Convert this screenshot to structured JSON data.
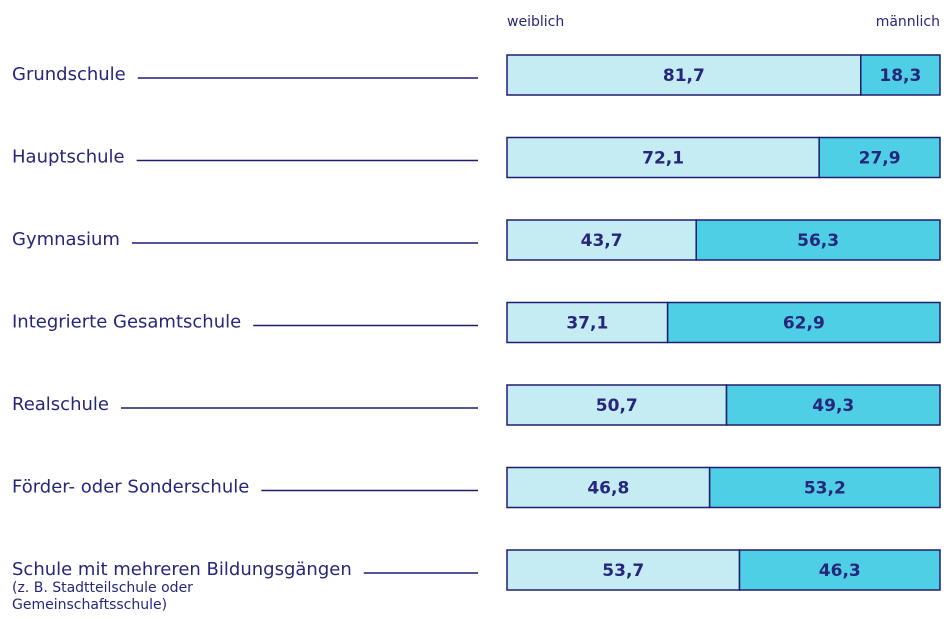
{
  "chart_data": {
    "type": "bar",
    "orientation": "horizontal",
    "stacked": true,
    "categories": [
      "Grundschule",
      "Hauptschule",
      "Gymnasium",
      "Integrierte Gesamtschule",
      "Realschule",
      "Förder- oder Sonderschule",
      "Schule mit mehreren Bildungsgängen"
    ],
    "category_notes": [
      null,
      null,
      null,
      null,
      null,
      null,
      [
        "(z. B. Stadtteilschule oder",
        "Gemeinschaftsschule)"
      ]
    ],
    "series": [
      {
        "name": "weiblich",
        "color": "#c4ecf2",
        "values": [
          81.7,
          72.1,
          43.7,
          37.1,
          50.7,
          46.8,
          53.7
        ],
        "value_labels": [
          "81,7",
          "72,1",
          "43,7",
          "37,1",
          "50,7",
          "46,8",
          "53,7"
        ]
      },
      {
        "name": "männlich",
        "color": "#4fcfe6",
        "values": [
          18.3,
          27.9,
          56.3,
          62.9,
          49.3,
          53.2,
          46.3
        ],
        "value_labels": [
          "18,3",
          "27,9",
          "56,3",
          "62,9",
          "49,3",
          "53,2",
          "46,3"
        ]
      }
    ]
  }
}
